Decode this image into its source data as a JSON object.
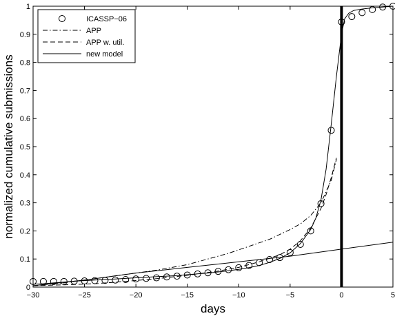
{
  "chart_data": {
    "type": "line",
    "title": "",
    "xlabel": "days",
    "ylabel": "normalized cumulative submissions",
    "xlim": [
      -30,
      5
    ],
    "ylim": [
      0,
      1
    ],
    "xticks": [
      -30,
      -25,
      -20,
      -15,
      -10,
      -5,
      0,
      5
    ],
    "yticks": [
      0,
      0.1,
      0.2,
      0.3,
      0.4,
      0.5,
      0.6,
      0.7,
      0.8,
      0.9,
      1
    ],
    "grid": false,
    "legend_position": "top-left",
    "vertical_marker_x": 0,
    "series": [
      {
        "name": "ICASSP−06",
        "style": "circles",
        "points": [
          [
            -30,
            0.02
          ],
          [
            -29,
            0.02
          ],
          [
            -28,
            0.02
          ],
          [
            -27,
            0.02
          ],
          [
            -26,
            0.021
          ],
          [
            -25,
            0.022
          ],
          [
            -24,
            0.023
          ],
          [
            -23,
            0.024
          ],
          [
            -22,
            0.025
          ],
          [
            -21,
            0.027
          ],
          [
            -20,
            0.029
          ],
          [
            -19,
            0.031
          ],
          [
            -18,
            0.033
          ],
          [
            -17,
            0.036
          ],
          [
            -16,
            0.039
          ],
          [
            -15,
            0.043
          ],
          [
            -14,
            0.047
          ],
          [
            -13,
            0.051
          ],
          [
            -12,
            0.056
          ],
          [
            -11,
            0.062
          ],
          [
            -10,
            0.069
          ],
          [
            -9,
            0.077
          ],
          [
            -8,
            0.087
          ],
          [
            -7,
            0.098
          ],
          [
            -6,
            0.105
          ],
          [
            -5,
            0.123
          ],
          [
            -4,
            0.152
          ],
          [
            -3,
            0.2
          ],
          [
            -2,
            0.297
          ],
          [
            -1,
            0.558
          ],
          [
            0,
            0.944
          ],
          [
            1,
            0.963
          ],
          [
            2,
            0.977
          ],
          [
            3,
            0.988
          ],
          [
            4,
            0.997
          ],
          [
            5,
            1.0
          ]
        ]
      },
      {
        "name": "APP",
        "style": "dashdot",
        "points": [
          [
            -30,
            0.005
          ],
          [
            -27,
            0.015
          ],
          [
            -24,
            0.03
          ],
          [
            -21,
            0.045
          ],
          [
            -18,
            0.06
          ],
          [
            -15,
            0.08
          ],
          [
            -13,
            0.1
          ],
          [
            -11,
            0.12
          ],
          [
            -9,
            0.145
          ],
          [
            -7,
            0.17
          ],
          [
            -5,
            0.205
          ],
          [
            -4,
            0.225
          ],
          [
            -3,
            0.255
          ],
          [
            -2,
            0.3
          ],
          [
            -1.5,
            0.34
          ],
          [
            -1,
            0.38
          ],
          [
            -0.5,
            0.455
          ]
        ]
      },
      {
        "name": "APP w. util.",
        "style": "dashed",
        "points": [
          [
            -30,
            0.005
          ],
          [
            -27,
            0.008
          ],
          [
            -24,
            0.012
          ],
          [
            -21,
            0.02
          ],
          [
            -18,
            0.03
          ],
          [
            -15,
            0.042
          ],
          [
            -12,
            0.057
          ],
          [
            -10,
            0.07
          ],
          [
            -8,
            0.09
          ],
          [
            -6,
            0.115
          ],
          [
            -5,
            0.135
          ],
          [
            -4,
            0.165
          ],
          [
            -3,
            0.21
          ],
          [
            -2,
            0.28
          ],
          [
            -1.5,
            0.33
          ],
          [
            -1,
            0.39
          ],
          [
            -0.5,
            0.46
          ]
        ]
      },
      {
        "name": "new model",
        "style": "solid",
        "points": [
          [
            -30,
            0.01
          ],
          [
            -29,
            0.012
          ],
          [
            -28,
            0.015
          ],
          [
            -27,
            0.018
          ],
          [
            -26,
            0.021
          ],
          [
            -25,
            0.023
          ],
          [
            -24,
            0.025
          ],
          [
            -23,
            0.027
          ],
          [
            -22,
            0.029
          ],
          [
            -21,
            0.031
          ],
          [
            -20,
            0.033
          ],
          [
            -19,
            0.035
          ],
          [
            -18,
            0.037
          ],
          [
            -17,
            0.039
          ],
          [
            -16,
            0.041
          ],
          [
            -15,
            0.044
          ],
          [
            -14,
            0.047
          ],
          [
            -13,
            0.05
          ],
          [
            -12,
            0.054
          ],
          [
            -11,
            0.058
          ],
          [
            -10,
            0.063
          ],
          [
            -9,
            0.069
          ],
          [
            -8,
            0.077
          ],
          [
            -7,
            0.088
          ],
          [
            -6,
            0.102
          ],
          [
            -5,
            0.122
          ],
          [
            -4,
            0.155
          ],
          [
            -3,
            0.205
          ],
          [
            -2.5,
            0.245
          ],
          [
            -2,
            0.31
          ],
          [
            -1.5,
            0.42
          ],
          [
            -1,
            0.58
          ],
          [
            -0.5,
            0.75
          ],
          [
            0,
            0.9
          ],
          [
            0.3,
            0.955
          ],
          [
            0.7,
            0.975
          ],
          [
            1.2,
            0.985
          ],
          [
            2,
            0.99
          ],
          [
            3,
            0.994
          ],
          [
            4,
            0.997
          ],
          [
            5,
            1.0
          ]
        ]
      },
      {
        "name": "",
        "style": "solid-thin",
        "points": [
          [
            -30,
            0.005
          ],
          [
            -25,
            0.025
          ],
          [
            -20,
            0.05
          ],
          [
            -15,
            0.07
          ],
          [
            -10,
            0.09
          ],
          [
            -5,
            0.11
          ],
          [
            0,
            0.135
          ],
          [
            5,
            0.16
          ]
        ]
      }
    ]
  }
}
